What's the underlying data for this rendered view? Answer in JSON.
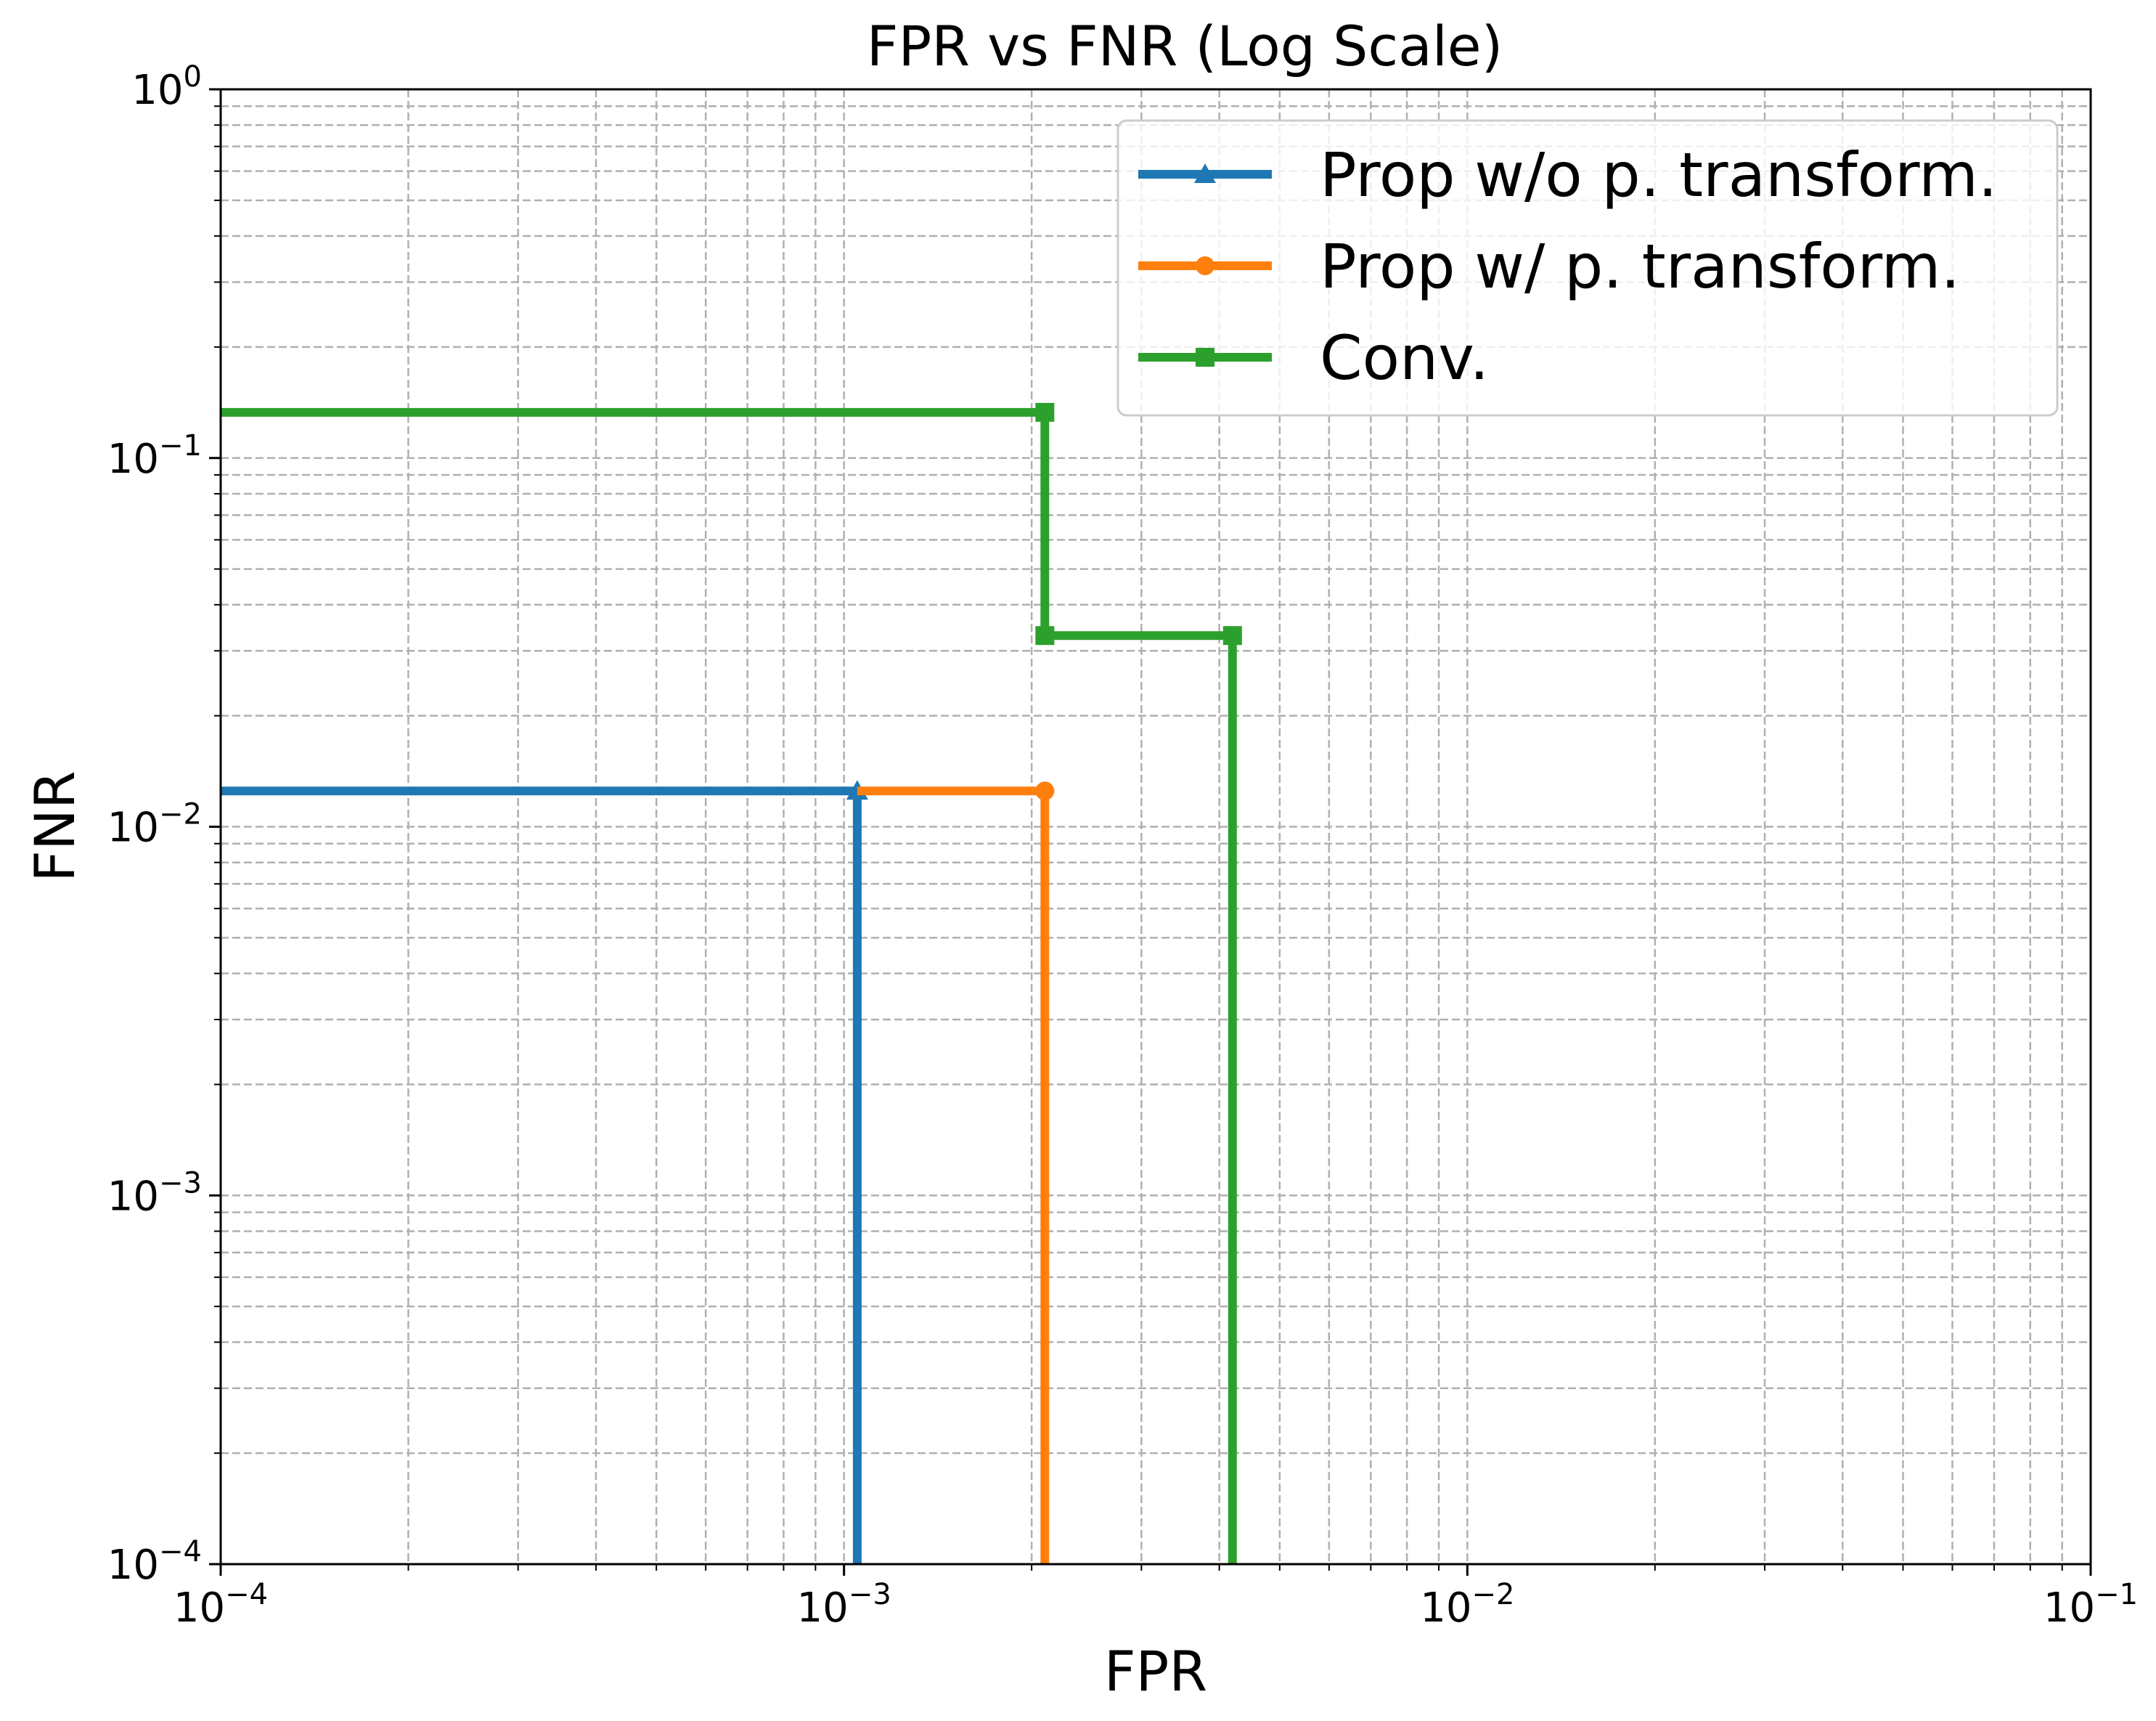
{
  "chart_data": {
    "type": "line",
    "title": "FPR vs FNR (Log Scale)",
    "xlabel": "FPR",
    "ylabel": "FNR",
    "xscale": "log",
    "yscale": "log",
    "xlim": [
      0.0001,
      0.1
    ],
    "ylim": [
      0.0001,
      1
    ],
    "grid": true,
    "legend_position": "top-right",
    "x_ticks": [
      {
        "value": 0.0001,
        "base": "10",
        "exp": "−4"
      },
      {
        "value": 0.001,
        "base": "10",
        "exp": "−3"
      },
      {
        "value": 0.01,
        "base": "10",
        "exp": "−2"
      },
      {
        "value": 0.1,
        "base": "10",
        "exp": "−1"
      }
    ],
    "y_ticks": [
      {
        "value": 0.0001,
        "base": "10",
        "exp": "−4"
      },
      {
        "value": 0.001,
        "base": "10",
        "exp": "−3"
      },
      {
        "value": 0.01,
        "base": "10",
        "exp": "−2"
      },
      {
        "value": 0.1,
        "base": "10",
        "exp": "−1"
      },
      {
        "value": 1,
        "base": "10",
        "exp": "0"
      }
    ],
    "series": [
      {
        "name": "Prop w/o p. transform.",
        "color": "#1f77b4",
        "marker": "triangle",
        "x": [
          0.0001,
          0.00105,
          0.00105
        ],
        "y": [
          0.0125,
          0.0125,
          0.0001
        ],
        "marker_points": [
          {
            "x": 0.00105,
            "y": 0.0125
          }
        ]
      },
      {
        "name": "Prop w/ p. transform.",
        "color": "#ff7f0e",
        "marker": "circle",
        "x": [
          0.00105,
          0.0021,
          0.0021
        ],
        "y": [
          0.0125,
          0.0125,
          0.0001
        ],
        "marker_points": [
          {
            "x": 0.0021,
            "y": 0.0125
          }
        ]
      },
      {
        "name": "Conv.",
        "color": "#2ca02c",
        "marker": "square",
        "x": [
          0.0001,
          0.0021,
          0.0021,
          0.0042,
          0.0042
        ],
        "y": [
          0.133,
          0.133,
          0.033,
          0.033,
          0.0001
        ],
        "marker_points": [
          {
            "x": 0.0021,
            "y": 0.133
          },
          {
            "x": 0.0021,
            "y": 0.033
          },
          {
            "x": 0.0042,
            "y": 0.033
          }
        ]
      }
    ]
  }
}
